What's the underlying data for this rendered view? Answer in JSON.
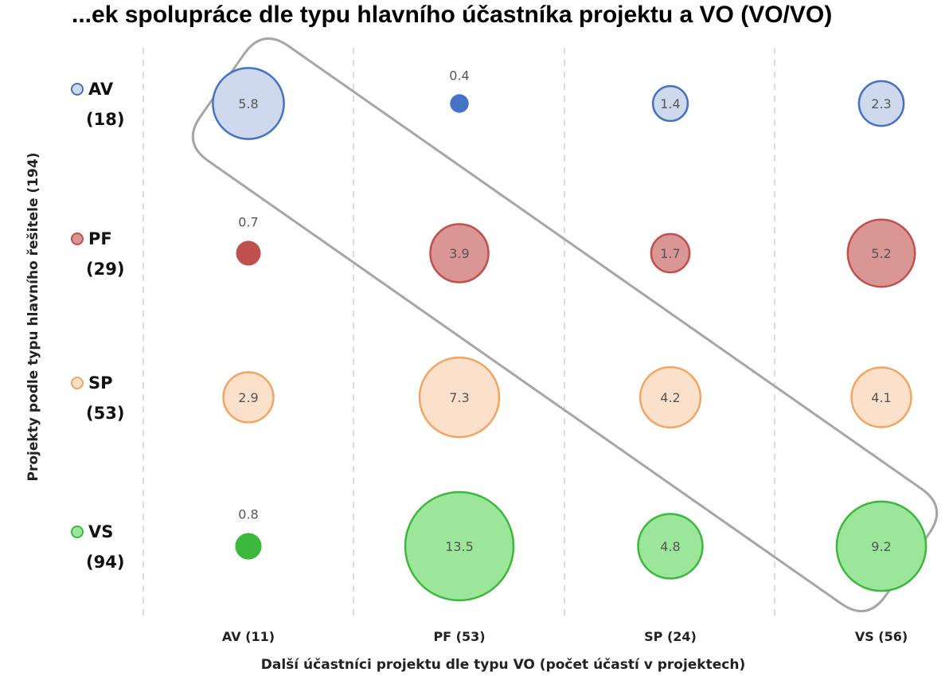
{
  "chart_data": {
    "type": "bubble",
    "title": "...ek spolupráce dle typu hlavního účastníka projektu a VO (VO/VO)",
    "xlabel": "Další účastníci projektu dle typu VO (počet účastí v projektech)",
    "ylabel": "Projekty podle typu hlavního řešitele (194)",
    "columns": [
      {
        "code": "AV",
        "label": "AV (11)"
      },
      {
        "code": "PF",
        "label": "PF (53)"
      },
      {
        "code": "SP",
        "label": "SP (24)"
      },
      {
        "code": "VS",
        "label": "VS (56)"
      }
    ],
    "rows": [
      {
        "code": "AV",
        "name": "AV",
        "count": "(18)",
        "color": "#4472c4",
        "fill": "#cfd9ee",
        "values": [
          "5.8",
          "0.4",
          "1.4",
          "2.3"
        ]
      },
      {
        "code": "PF",
        "name": "PF",
        "count": "(29)",
        "color": "#c0504d",
        "fill": "#d99694",
        "values": [
          "0.7",
          "3.9",
          "1.7",
          "5.2"
        ]
      },
      {
        "code": "SP",
        "name": "SP",
        "count": "(53)",
        "color": "#f4a460",
        "fill": "#fbe1cc",
        "values": [
          "2.9",
          "7.3",
          "4.2",
          "4.1"
        ]
      },
      {
        "code": "VS",
        "name": "VS",
        "count": "(94)",
        "color": "#3cb83c",
        "fill": "#9be69b",
        "values": [
          "0.8",
          "13.5",
          "4.8",
          "9.2"
        ]
      }
    ],
    "highlight": "diagonal",
    "grid": true
  }
}
